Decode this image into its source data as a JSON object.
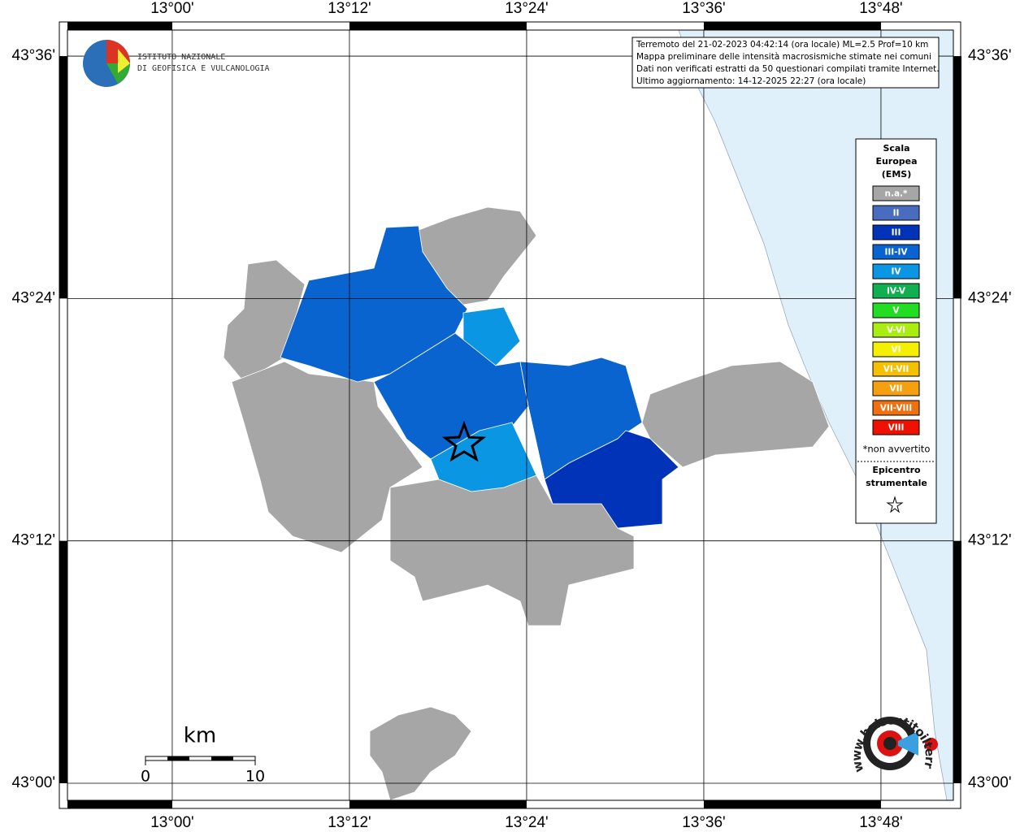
{
  "map": {
    "lonlim": [
      12.8817,
      13.8817
    ],
    "latlim": [
      42.9859,
      43.6215
    ],
    "lon_ticks": [
      {
        "value": 13.0,
        "label": "13°00'"
      },
      {
        "value": 13.2,
        "label": "13°12'"
      },
      {
        "value": 13.4,
        "label": "13°24'"
      },
      {
        "value": 13.6,
        "label": "13°36'"
      },
      {
        "value": 13.8,
        "label": "13°48'"
      }
    ],
    "lat_ticks": [
      {
        "value": 43.6,
        "label": "43°36'"
      },
      {
        "value": 43.4,
        "label": "43°24'"
      },
      {
        "value": 43.2,
        "label": "43°12'"
      },
      {
        "value": 43.0,
        "label": "43°00'"
      }
    ],
    "info": [
      "Terremoto del 21-02-2023 04:42:14 (ora locale) ML=2.5 Prof=10 km",
      "Mappa preliminare delle intensità macrosismiche stimate nei comuni",
      "Dati non verificati estratti da 50 questionari compilati tramite Internet.",
      "Ultimo aggiornamento: 14-12-2025 22:27 (ora locale)"
    ],
    "logo_ingv": [
      "ISTITUTO NAZIONALE",
      "DI GEOFISICA E VULCANOLOGIA"
    ],
    "logo_hsit": "www.haisentitoilterremoto.it",
    "legend": {
      "title": [
        "Scala",
        "Europea",
        "(EMS)"
      ],
      "classes": [
        {
          "label": "n.a.*",
          "color": "#a6a6a6"
        },
        {
          "label": "II",
          "color": "#4a6cbf"
        },
        {
          "label": "III",
          "color": "#0033b8"
        },
        {
          "label": "III-IV",
          "color": "#0a64d0"
        },
        {
          "label": "IV",
          "color": "#0a96e2"
        },
        {
          "label": "IV-V",
          "color": "#10b050"
        },
        {
          "label": "V",
          "color": "#22dd22"
        },
        {
          "label": "V-VI",
          "color": "#aaee11"
        },
        {
          "label": "VI",
          "color": "#f5f000"
        },
        {
          "label": "VI-VII",
          "color": "#f5c000"
        },
        {
          "label": "VII",
          "color": "#f5a010"
        },
        {
          "label": "VII-VIII",
          "color": "#f07010"
        },
        {
          "label": "VIII",
          "color": "#ee1100"
        }
      ],
      "note": "*non avvertito",
      "epicenter": [
        "Epicentro",
        "strumentale"
      ]
    },
    "scalebar": {
      "unit": "km",
      "labels": [
        "0",
        "10"
      ]
    }
  }
}
